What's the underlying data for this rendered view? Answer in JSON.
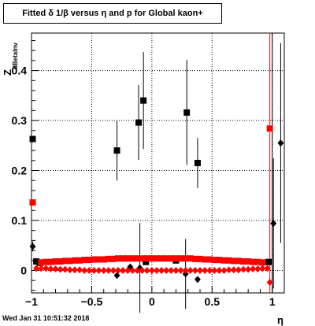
{
  "title": "Fitted δ 1/β versus η and p for Global kaon+",
  "footer": "Wed Jan 31 10:51:32 2018",
  "chart_data": {
    "type": "scatter",
    "xlabel": "η",
    "ylabel": "Z",
    "ylabel_sub": "dBetaInv",
    "xlim": [
      -1.0,
      1.1
    ],
    "ylim": [
      -0.045,
      0.475
    ],
    "x_ticks": [
      -1,
      -0.5,
      0,
      0.5,
      1
    ],
    "x_tick_labels": [
      "−1",
      "−0.5",
      "0",
      "0.5",
      "1"
    ],
    "y_ticks": [
      0,
      0.1,
      0.2,
      0.3,
      0.4
    ],
    "y_tick_labels": [
      "0",
      "0.1",
      "0.2",
      "0.3",
      "0.4"
    ],
    "grid": true,
    "colors": {
      "black": "#000000",
      "red": "#ff0000"
    },
    "series": [
      {
        "marker": "square",
        "color": "#000000",
        "points": [
          {
            "x": -0.99,
            "y": 0.263,
            "err": 0.0
          },
          {
            "x": -0.96,
            "y": 0.018,
            "err": 0.0
          },
          {
            "x": -0.93,
            "y": 0.015,
            "err": 0.0
          },
          {
            "x": -0.29,
            "y": 0.24,
            "err": 0.06
          },
          {
            "x": -0.11,
            "y": 0.296,
            "err": 0.075
          },
          {
            "x": -0.07,
            "y": 0.34,
            "err": 0.097
          },
          {
            "x": 0.29,
            "y": 0.316,
            "err": 0.105
          },
          {
            "x": 0.38,
            "y": 0.215,
            "err": 0.05
          },
          {
            "x": -0.05,
            "y": 0.017,
            "err": 0.0
          },
          {
            "x": 0.2,
            "y": 0.02,
            "err": 0.0
          },
          {
            "x": 0.97,
            "y": 0.017,
            "err": 0.0
          }
        ]
      },
      {
        "marker": "diamond",
        "color": "#000000",
        "points": [
          {
            "x": -0.99,
            "y": 0.048,
            "err": 0.01
          },
          {
            "x": -0.29,
            "y": -0.01,
            "err": 0.0
          },
          {
            "x": -0.18,
            "y": 0.007,
            "err": 0.0
          },
          {
            "x": -0.1,
            "y": 0.005,
            "err": 0.09
          },
          {
            "x": 0.28,
            "y": -0.007,
            "err": 0.07
          },
          {
            "x": 0.38,
            "y": -0.018,
            "err": 0.0
          },
          {
            "x": 1.01,
            "y": 0.094,
            "err": 0.13
          },
          {
            "x": 1.07,
            "y": 0.255,
            "err": 0.2
          }
        ]
      },
      {
        "marker": "square",
        "color": "#ff0000",
        "points": [
          {
            "x": -0.99,
            "y": 0.136
          },
          {
            "x": -0.92,
            "y": 0.016
          },
          {
            "x": -0.88,
            "y": 0.017
          },
          {
            "x": -0.84,
            "y": 0.017
          },
          {
            "x": -0.8,
            "y": 0.018
          },
          {
            "x": -0.76,
            "y": 0.018
          },
          {
            "x": -0.72,
            "y": 0.019
          },
          {
            "x": -0.68,
            "y": 0.019
          },
          {
            "x": -0.64,
            "y": 0.02
          },
          {
            "x": -0.6,
            "y": 0.02
          },
          {
            "x": -0.56,
            "y": 0.021
          },
          {
            "x": -0.52,
            "y": 0.021
          },
          {
            "x": -0.48,
            "y": 0.022
          },
          {
            "x": -0.44,
            "y": 0.022
          },
          {
            "x": -0.4,
            "y": 0.022
          },
          {
            "x": -0.36,
            "y": 0.023
          },
          {
            "x": -0.32,
            "y": 0.023
          },
          {
            "x": -0.28,
            "y": 0.024
          },
          {
            "x": -0.24,
            "y": 0.024
          },
          {
            "x": -0.2,
            "y": 0.024
          },
          {
            "x": -0.16,
            "y": 0.024
          },
          {
            "x": -0.12,
            "y": 0.024
          },
          {
            "x": -0.08,
            "y": 0.024
          },
          {
            "x": -0.04,
            "y": 0.024
          },
          {
            "x": 0.0,
            "y": 0.024
          },
          {
            "x": 0.04,
            "y": 0.024
          },
          {
            "x": 0.08,
            "y": 0.024
          },
          {
            "x": 0.12,
            "y": 0.024
          },
          {
            "x": 0.16,
            "y": 0.024
          },
          {
            "x": 0.2,
            "y": 0.024
          },
          {
            "x": 0.24,
            "y": 0.024
          },
          {
            "x": 0.28,
            "y": 0.024
          },
          {
            "x": 0.32,
            "y": 0.024
          },
          {
            "x": 0.36,
            "y": 0.023
          },
          {
            "x": 0.4,
            "y": 0.023
          },
          {
            "x": 0.44,
            "y": 0.022
          },
          {
            "x": 0.48,
            "y": 0.022
          },
          {
            "x": 0.52,
            "y": 0.021
          },
          {
            "x": 0.56,
            "y": 0.021
          },
          {
            "x": 0.6,
            "y": 0.02
          },
          {
            "x": 0.64,
            "y": 0.02
          },
          {
            "x": 0.68,
            "y": 0.019
          },
          {
            "x": 0.72,
            "y": 0.019
          },
          {
            "x": 0.76,
            "y": 0.018
          },
          {
            "x": 0.8,
            "y": 0.018
          },
          {
            "x": 0.84,
            "y": 0.017
          },
          {
            "x": 0.88,
            "y": 0.017
          },
          {
            "x": 0.92,
            "y": 0.016
          },
          {
            "x": 0.98,
            "y": 0.284
          }
        ]
      },
      {
        "marker": "diamond",
        "color": "#ff0000",
        "points": [
          {
            "x": -0.96,
            "y": 0.004
          },
          {
            "x": -0.92,
            "y": 0.004
          },
          {
            "x": -0.88,
            "y": 0.004
          },
          {
            "x": -0.84,
            "y": 0.003
          },
          {
            "x": -0.8,
            "y": 0.003
          },
          {
            "x": -0.76,
            "y": 0.002
          },
          {
            "x": -0.72,
            "y": 0.002
          },
          {
            "x": -0.68,
            "y": 0.001
          },
          {
            "x": -0.64,
            "y": 0.001
          },
          {
            "x": -0.6,
            "y": 0.001
          },
          {
            "x": -0.56,
            "y": 0.0
          },
          {
            "x": -0.52,
            "y": 0.0
          },
          {
            "x": -0.48,
            "y": 0.0
          },
          {
            "x": -0.44,
            "y": 0.0
          },
          {
            "x": -0.4,
            "y": 0.0
          },
          {
            "x": -0.36,
            "y": 0.0
          },
          {
            "x": -0.32,
            "y": 0.0
          },
          {
            "x": -0.28,
            "y": 0.0
          },
          {
            "x": -0.24,
            "y": 0.0
          },
          {
            "x": -0.2,
            "y": 0.0
          },
          {
            "x": -0.16,
            "y": 0.0
          },
          {
            "x": -0.12,
            "y": 0.0
          },
          {
            "x": -0.08,
            "y": 0.0
          },
          {
            "x": -0.04,
            "y": 0.0
          },
          {
            "x": 0.0,
            "y": 0.0
          },
          {
            "x": 0.04,
            "y": 0.0
          },
          {
            "x": 0.08,
            "y": 0.0
          },
          {
            "x": 0.12,
            "y": 0.0
          },
          {
            "x": 0.16,
            "y": 0.0
          },
          {
            "x": 0.2,
            "y": 0.0
          },
          {
            "x": 0.24,
            "y": 0.0
          },
          {
            "x": 0.28,
            "y": 0.0
          },
          {
            "x": 0.32,
            "y": 0.0
          },
          {
            "x": 0.36,
            "y": 0.0
          },
          {
            "x": 0.4,
            "y": 0.0
          },
          {
            "x": 0.44,
            "y": 0.0
          },
          {
            "x": 0.48,
            "y": 0.0
          },
          {
            "x": 0.52,
            "y": 0.0
          },
          {
            "x": 0.56,
            "y": 0.0
          },
          {
            "x": 0.6,
            "y": 0.0
          },
          {
            "x": 0.64,
            "y": 0.001
          },
          {
            "x": 0.68,
            "y": 0.001
          },
          {
            "x": 0.72,
            "y": 0.001
          },
          {
            "x": 0.76,
            "y": 0.002
          },
          {
            "x": 0.8,
            "y": 0.002
          },
          {
            "x": 0.84,
            "y": 0.003
          },
          {
            "x": 0.88,
            "y": 0.003
          },
          {
            "x": 0.92,
            "y": 0.004
          },
          {
            "x": 0.96,
            "y": 0.004
          },
          {
            "x": 0.98,
            "y": -0.024
          }
        ]
      }
    ],
    "reference_lines": [
      {
        "x": 0.98,
        "color": "#ff0000"
      },
      {
        "x": 1.0,
        "color": "#000000"
      }
    ]
  }
}
